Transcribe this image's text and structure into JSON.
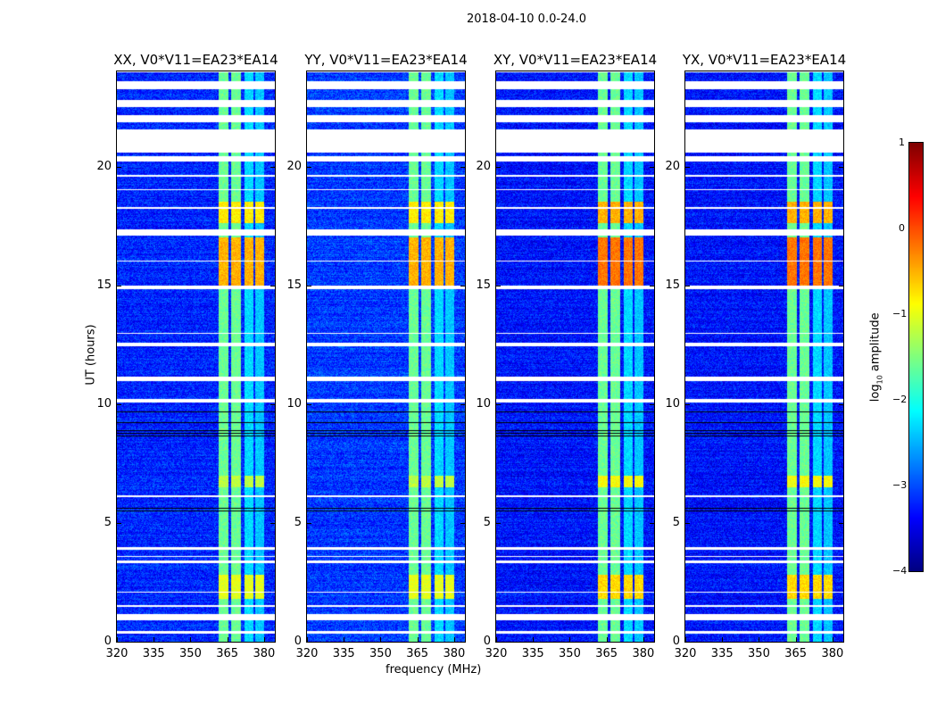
{
  "title": "2018-04-10 0.0-24.0",
  "chart_data": {
    "type": "heatmap",
    "title": "2018-04-10 0.0-24.0",
    "xlabel": "frequency (MHz)",
    "ylabel": "UT (hours)",
    "xlim": [
      320,
      384.4
    ],
    "ylim": [
      0,
      24
    ],
    "xticks": [
      "320",
      "335",
      "350",
      "365",
      "380"
    ],
    "yticks": [
      "0",
      "5",
      "10",
      "15",
      "20"
    ],
    "panels": [
      {
        "title": "XX, V0*V11=EA23*EA14",
        "background_log_amp": -3.2
      },
      {
        "title": "YY, V0*V11=EA23*EA14",
        "background_log_amp": -3.1
      },
      {
        "title": "XY, V0*V11=EA23*EA14",
        "background_log_amp": -3.3
      },
      {
        "title": "YX, V0*V11=EA23*EA14",
        "background_log_amp": -3.3
      }
    ],
    "rfi_bands_mhz": [
      [
        361.5,
        365.5,
        -1.6
      ],
      [
        366.5,
        370.5,
        -1.6
      ],
      [
        372,
        375.5,
        -2.3
      ],
      [
        376.5,
        380,
        -2.4
      ]
    ],
    "flagged_hours": [
      [
        0.35,
        0.45
      ],
      [
        0.9,
        1.15
      ],
      [
        1.45,
        1.55
      ],
      [
        2.05,
        2.1
      ],
      [
        3.3,
        3.4
      ],
      [
        3.55,
        3.6
      ],
      [
        3.85,
        4.0
      ],
      [
        6.1,
        6.15
      ],
      [
        10.05,
        10.2
      ],
      [
        10.95,
        11.15
      ],
      [
        12.45,
        12.6
      ],
      [
        12.95,
        13.0
      ],
      [
        14.85,
        15.0
      ],
      [
        16.0,
        16.05
      ],
      [
        17.1,
        17.35
      ],
      [
        18.2,
        18.3
      ],
      [
        19.0,
        19.05
      ],
      [
        19.55,
        19.65
      ],
      [
        20.2,
        20.45
      ],
      [
        20.6,
        21.55
      ],
      [
        21.85,
        22.15
      ],
      [
        22.5,
        22.8
      ],
      [
        23.25,
        23.6
      ],
      [
        23.95,
        24.0
      ]
    ],
    "dark_rows_hours": [
      [
        0.55,
        0.6
      ],
      [
        1.25,
        1.3
      ],
      [
        5.45,
        5.7
      ],
      [
        8.65,
        8.95
      ],
      [
        9.2,
        9.3
      ],
      [
        9.6,
        9.7
      ]
    ],
    "strong_rfi_hours": [
      [
        15.0,
        17.0,
        -0.5
      ],
      [
        17.6,
        18.5,
        -0.8
      ],
      [
        1.8,
        2.8,
        -1.0
      ],
      [
        6.5,
        7.0,
        -1.2
      ]
    ],
    "colorbar": {
      "label": "log10 amplitude",
      "range": [
        -4,
        1
      ],
      "ticks": [
        "1",
        "0",
        "−1",
        "−2",
        "−3",
        "−4"
      ],
      "colormap": "jet"
    }
  }
}
